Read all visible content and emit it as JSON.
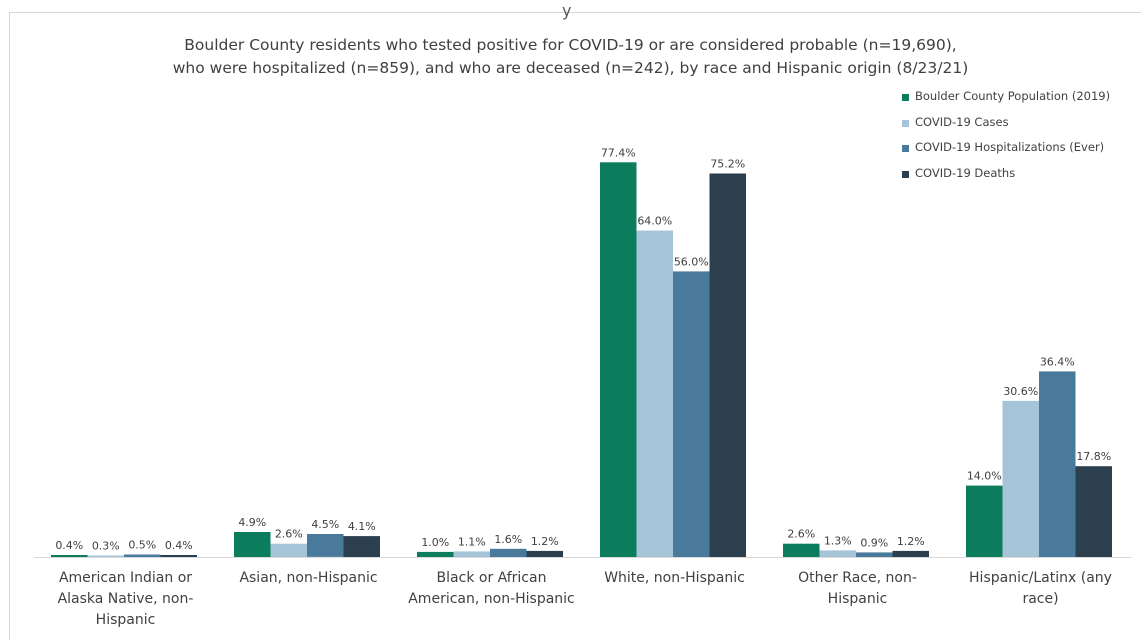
{
  "header_glyph": "y",
  "chart_data": {
    "type": "bar",
    "title_lines": [
      "Boulder County residents who tested positive for COVID-19 or are considered probable (n=19,690),",
      "who were hospitalized (n=859), and who are deceased (n=242), by race and Hispanic origin (8/23/21)"
    ],
    "categories": [
      "American Indian or Alaska Native, non-Hispanic",
      "Asian, non-Hispanic",
      "Black or African American, non-Hispanic",
      "White, non-Hispanic",
      "Other Race, non-Hispanic",
      "Hispanic/Latinx (any race)"
    ],
    "category_label_lines": [
      [
        "American Indian or",
        "Alaska Native, non-",
        "Hispanic"
      ],
      [
        "Asian, non-Hispanic"
      ],
      [
        "Black or African",
        "American, non-Hispanic"
      ],
      [
        "White, non-Hispanic"
      ],
      [
        "Other Race, non-",
        "Hispanic"
      ],
      [
        "Hispanic/Latinx (any",
        "race)"
      ]
    ],
    "series": [
      {
        "name": "Boulder County Population (2019)",
        "color": "#0b7c5c",
        "values": [
          0.4,
          4.9,
          1.0,
          77.4,
          2.6,
          14.0
        ]
      },
      {
        "name": "COVID-19 Cases",
        "color": "#a6c4d8",
        "values": [
          0.3,
          2.6,
          1.1,
          64.0,
          1.3,
          30.6
        ]
      },
      {
        "name": "COVID-19 Hospitalizations (Ever)",
        "color": "#4a7a9b",
        "values": [
          0.5,
          4.5,
          1.6,
          56.0,
          0.9,
          36.4
        ]
      },
      {
        "name": "COVID-19 Deaths",
        "color": "#2b3f4e",
        "values": [
          0.4,
          4.1,
          1.2,
          75.2,
          1.2,
          17.8
        ]
      }
    ],
    "value_suffix": "%",
    "ylim": [
      0,
      80
    ],
    "grid": false,
    "legend_position": "top-right",
    "axis_color": "#d9d9d9"
  }
}
